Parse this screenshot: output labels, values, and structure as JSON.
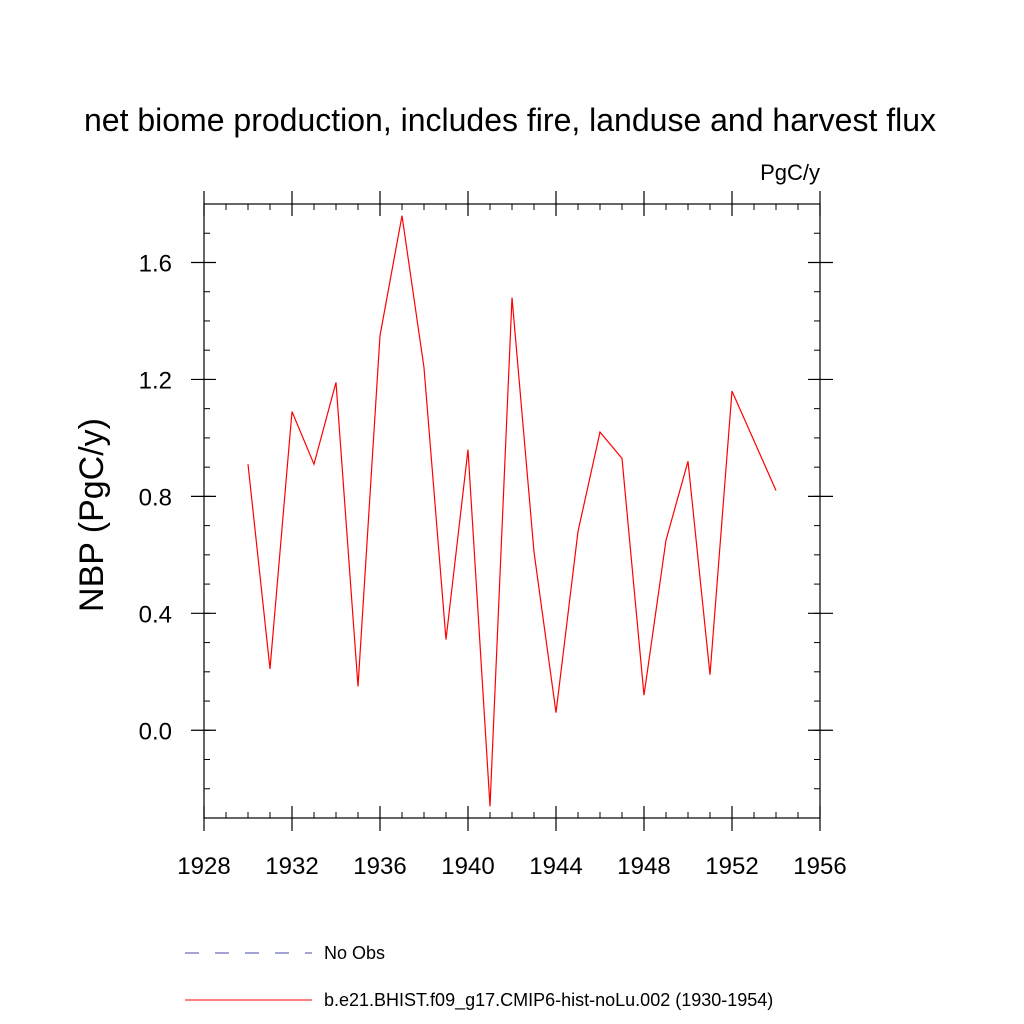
{
  "chart_data": {
    "type": "line",
    "title": "net biome production, includes fire, landuse and harvest flux",
    "units": "PgC/y",
    "ylabel": "NBP  (PgC/y)",
    "xlim": [
      1928,
      1956
    ],
    "ylim": [
      -0.3,
      1.8
    ],
    "xticks": [
      1928,
      1932,
      1936,
      1940,
      1944,
      1948,
      1952,
      1956
    ],
    "xtick_labels": [
      "1928",
      "1932",
      "1936",
      "1940",
      "1944",
      "1948",
      "1952",
      "1956"
    ],
    "yticks": [
      0.0,
      0.4,
      0.8,
      1.2,
      1.6
    ],
    "ytick_labels": [
      "0.0",
      "0.4",
      "0.8",
      "1.2",
      "1.6"
    ],
    "grid": false,
    "legend_position": "bottom",
    "series": [
      {
        "name": "b.e21.BHIST.f09_g17.CMIP6-hist-noLu.002 (1930-1954)",
        "color": "#ff0000",
        "style": "solid",
        "x": [
          1930,
          1931,
          1932,
          1933,
          1934,
          1935,
          1936,
          1937,
          1938,
          1939,
          1940,
          1941,
          1942,
          1943,
          1944,
          1945,
          1946,
          1947,
          1948,
          1949,
          1950,
          1951,
          1952,
          1953,
          1954
        ],
        "values": [
          0.91,
          0.21,
          1.09,
          0.91,
          1.19,
          0.15,
          1.35,
          1.76,
          1.24,
          0.31,
          0.96,
          -0.26,
          1.48,
          0.61,
          0.06,
          0.68,
          1.02,
          0.93,
          0.12,
          0.65,
          0.92,
          0.19,
          1.16,
          0.99,
          0.82
        ]
      }
    ],
    "legend": [
      {
        "label": "No Obs",
        "color": "#4a4aa8",
        "style": "dashed"
      },
      {
        "label": "b.e21.BHIST.f09_g17.CMIP6-hist-noLu.002 (1930-1954)",
        "color": "#ff0000",
        "style": "solid"
      }
    ]
  }
}
